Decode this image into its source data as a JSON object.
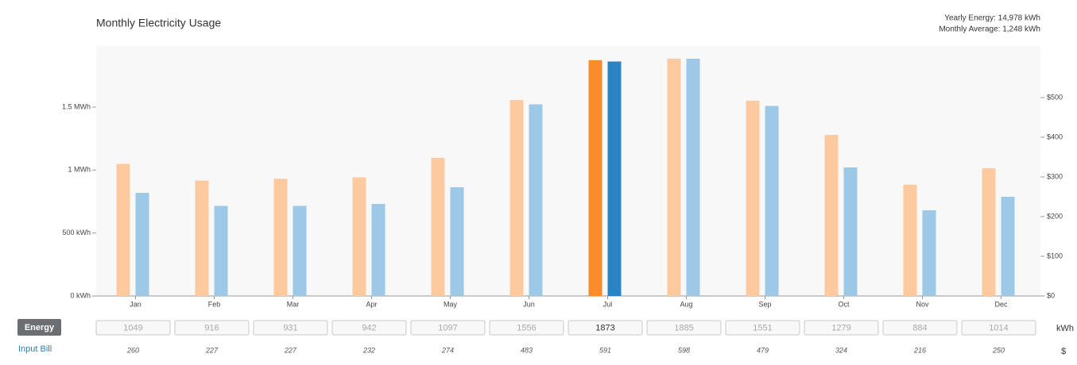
{
  "chart_data": {
    "type": "bar",
    "title": "Monthly Electricity Usage",
    "annotations": [
      "Yearly Energy: 14,978 kWh",
      "Monthly Average: 1,248 kWh"
    ],
    "categories": [
      "Jan",
      "Feb",
      "Mar",
      "Apr",
      "May",
      "Jun",
      "Jul",
      "Aug",
      "Sep",
      "Oct",
      "Nov",
      "Dec"
    ],
    "highlight": "Jul",
    "series": [
      {
        "name": "Energy",
        "unit": "kWh",
        "color": "#fdcaa0",
        "highlight_color": "#fb8c2e",
        "values": [
          1049,
          916,
          931,
          942,
          1097,
          1556,
          1873,
          1885,
          1551,
          1279,
          884,
          1014
        ]
      },
      {
        "name": "Input Bill",
        "unit": "$",
        "axis": "y2",
        "color": "#9dc8e6",
        "highlight_color": "#2c83c2",
        "values": [
          260,
          227,
          227,
          232,
          274,
          483,
          591,
          598,
          479,
          324,
          216,
          250
        ]
      }
    ],
    "ylim": [
      0,
      1985
    ],
    "yticks": [
      {
        "value": 0,
        "label": "0 kWh"
      },
      {
        "value": 500,
        "label": "500 kWh"
      },
      {
        "value": 1000,
        "label": "1 MWh"
      },
      {
        "value": 1500,
        "label": "1.5 MWh"
      }
    ],
    "y2lim": [
      0,
      630
    ],
    "y2ticks": [
      {
        "value": 0,
        "label": "$0"
      },
      {
        "value": 100,
        "label": "$100"
      },
      {
        "value": 200,
        "label": "$200"
      },
      {
        "value": 300,
        "label": "$300"
      },
      {
        "value": 400,
        "label": "$400"
      },
      {
        "value": 500,
        "label": "$500"
      }
    ]
  }
}
